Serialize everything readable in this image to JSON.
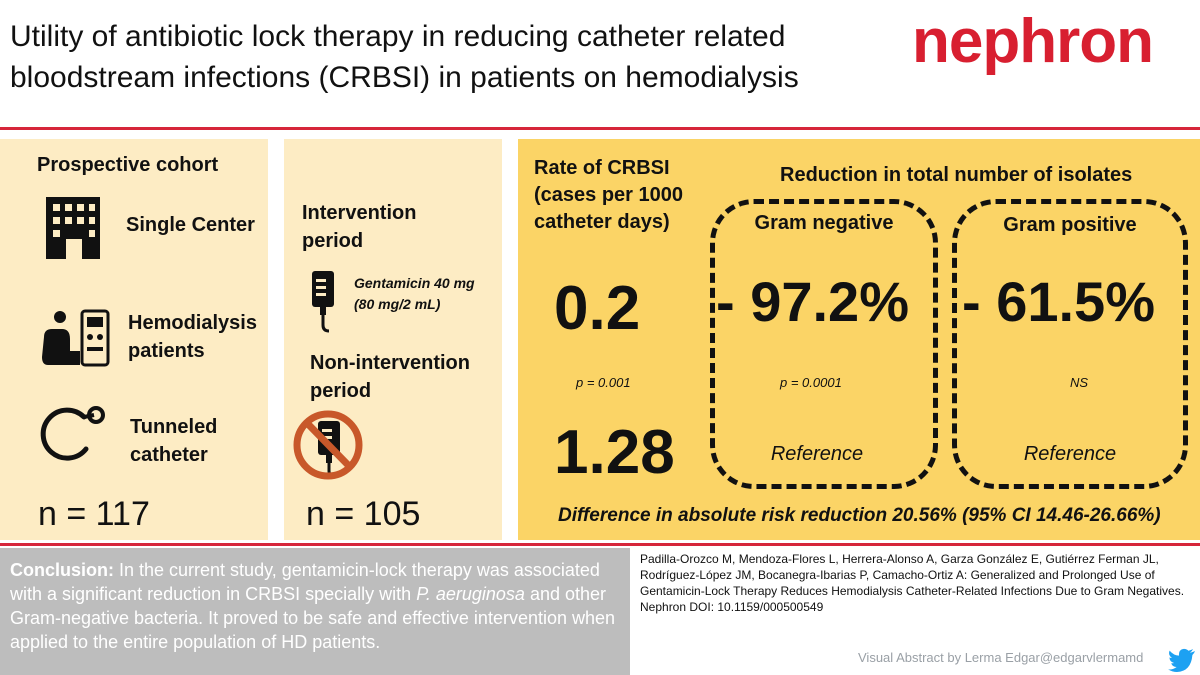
{
  "header": {
    "title_line1": "Utility of antibiotic lock therapy in reducing catheter related",
    "title_line2": "bloodstream infections (CRBSI) in patients on hemodialysis",
    "logo_text": "nephron"
  },
  "colors": {
    "accent_red": "#d6263a",
    "panel_light": "#fdecc4",
    "panel_dark": "#fbd466",
    "conclusion_bg": "#bdbdbd"
  },
  "cohort": {
    "heading": "Prospective  cohort",
    "items": [
      {
        "icon": "building-icon",
        "label": "Single Center"
      },
      {
        "icon": "dialysis-patient-icon",
        "label_line1": "Hemodialysis",
        "label_line2": "patients"
      },
      {
        "icon": "catheter-icon",
        "label_line1": "Tunneled",
        "label_line2": "catheter"
      }
    ],
    "n": "n = 117"
  },
  "intervention": {
    "heading_line1": "Intervention",
    "heading_line2": "period",
    "drug_line1": "Gentamicin 40 mg",
    "drug_line2": "(80 mg/2 mL)",
    "non_line1": "Non-intervention",
    "non_line2": "period",
    "n": "n = 105"
  },
  "results": {
    "rate_line1": "Rate of CRBSI",
    "rate_line2": "(cases per 1000",
    "rate_line3": "catheter days)",
    "rate_intervention": "0.2",
    "rate_p": "p = 0.001",
    "rate_non": "1.28",
    "reduction_heading": "Reduction in total number of isolates",
    "gram_negative": {
      "label": "Gram negative",
      "value": "- 97.2%",
      "p": "p = 0.0001",
      "ref": "Reference"
    },
    "gram_positive": {
      "label": "Gram positive",
      "value": "- 61.5%",
      "p": "NS",
      "ref": "Reference"
    },
    "difference": "Difference in absolute risk reduction 20.56% (95% CI 14.46-26.66%)"
  },
  "conclusion": {
    "label": "Conclusion:",
    "text1": " In the current study, gentamicin-lock therapy was associated with a significant reduction in CRBSI specially with ",
    "species": "P. aeruginosa",
    "text2": " and other Gram-negative bacteria. It proved to be safe and effective intervention when applied to the entire population of HD patients."
  },
  "citation": {
    "authors": "Padilla-Orozco M, Mendoza-Flores L, Herrera-Alonso A,  Garza González E, Gutiérrez Ferman JL, Rodríguez-López JM, Bocanegra-Ibarias P, Camacho-Ortiz A: Generalized and Prolonged Use of Gentamicin-Lock Therapy Reduces Hemodialysis Catheter-Related Infections Due to Gram Negatives.",
    "doi": "Nephron DOI: 10.1159/000500549"
  },
  "footer": {
    "credit": "Visual Abstract by Lerma Edgar@edgarvlermamd"
  }
}
